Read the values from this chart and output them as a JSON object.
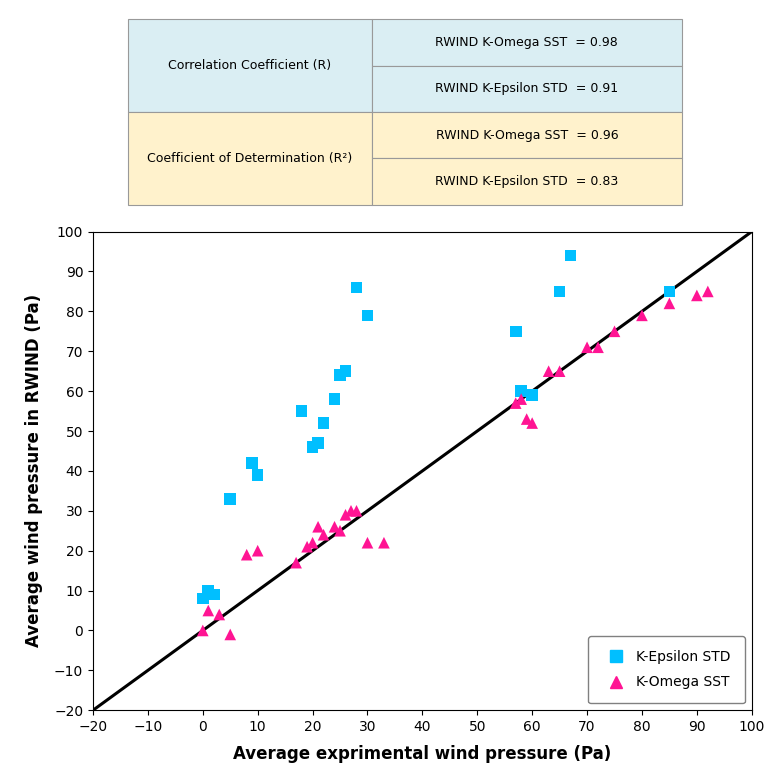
{
  "ke_std_x": [
    0,
    1,
    2,
    5,
    9,
    10,
    18,
    20,
    21,
    22,
    24,
    25,
    26,
    28,
    30,
    57,
    58,
    60,
    65,
    67,
    85
  ],
  "ke_std_y": [
    8,
    10,
    9,
    33,
    42,
    39,
    55,
    46,
    47,
    52,
    58,
    64,
    65,
    86,
    79,
    75,
    60,
    59,
    85,
    94,
    85
  ],
  "ko_sst_x": [
    0,
    1,
    3,
    5,
    8,
    10,
    17,
    19,
    20,
    21,
    22,
    24,
    25,
    26,
    27,
    28,
    30,
    33,
    57,
    58,
    59,
    60,
    63,
    65,
    70,
    72,
    75,
    80,
    85,
    90,
    92
  ],
  "ko_sst_y": [
    0,
    5,
    4,
    -1,
    19,
    20,
    17,
    21,
    22,
    26,
    24,
    26,
    25,
    29,
    30,
    30,
    22,
    22,
    57,
    58,
    53,
    52,
    65,
    65,
    71,
    71,
    75,
    79,
    82,
    84,
    85
  ],
  "ke_std_color": "#00BFFF",
  "ko_sst_color": "#FF1493",
  "line_color": "black",
  "xlim": [
    -20,
    100
  ],
  "ylim": [
    -20,
    100
  ],
  "xticks": [
    -20,
    -10,
    0,
    10,
    20,
    30,
    40,
    50,
    60,
    70,
    80,
    90,
    100
  ],
  "yticks": [
    -20,
    -10,
    0,
    10,
    20,
    30,
    40,
    50,
    60,
    70,
    80,
    90,
    100
  ],
  "xlabel": "Average exprimental wind pressure (Pa)",
  "ylabel": "Average wind pressure in RWIND (Pa)",
  "legend_ke_label": "K-Epsilon STD",
  "legend_ko_label": "K-Omega SST",
  "table_row1_left": "Correlation Coefficient (R)",
  "table_row1_right1": "RWIND K-Omega SST  = 0.98",
  "table_row1_right2": "RWIND K-Epsilon STD  = 0.91",
  "table_row2_left": "Coefficient of Determination (R²)",
  "table_row2_right1": "RWIND K-Omega SST  = 0.96",
  "table_row2_right2": "RWIND K-Epsilon STD  = 0.83",
  "table_bg_blue": "#DAEEF3",
  "table_bg_yellow": "#FFF2CC",
  "table_bg_white": "#FFFFFF",
  "border_color": "#999999",
  "marker_size_sq": 70,
  "marker_size_tri": 70,
  "fig_width": 7.75,
  "fig_height": 7.72
}
